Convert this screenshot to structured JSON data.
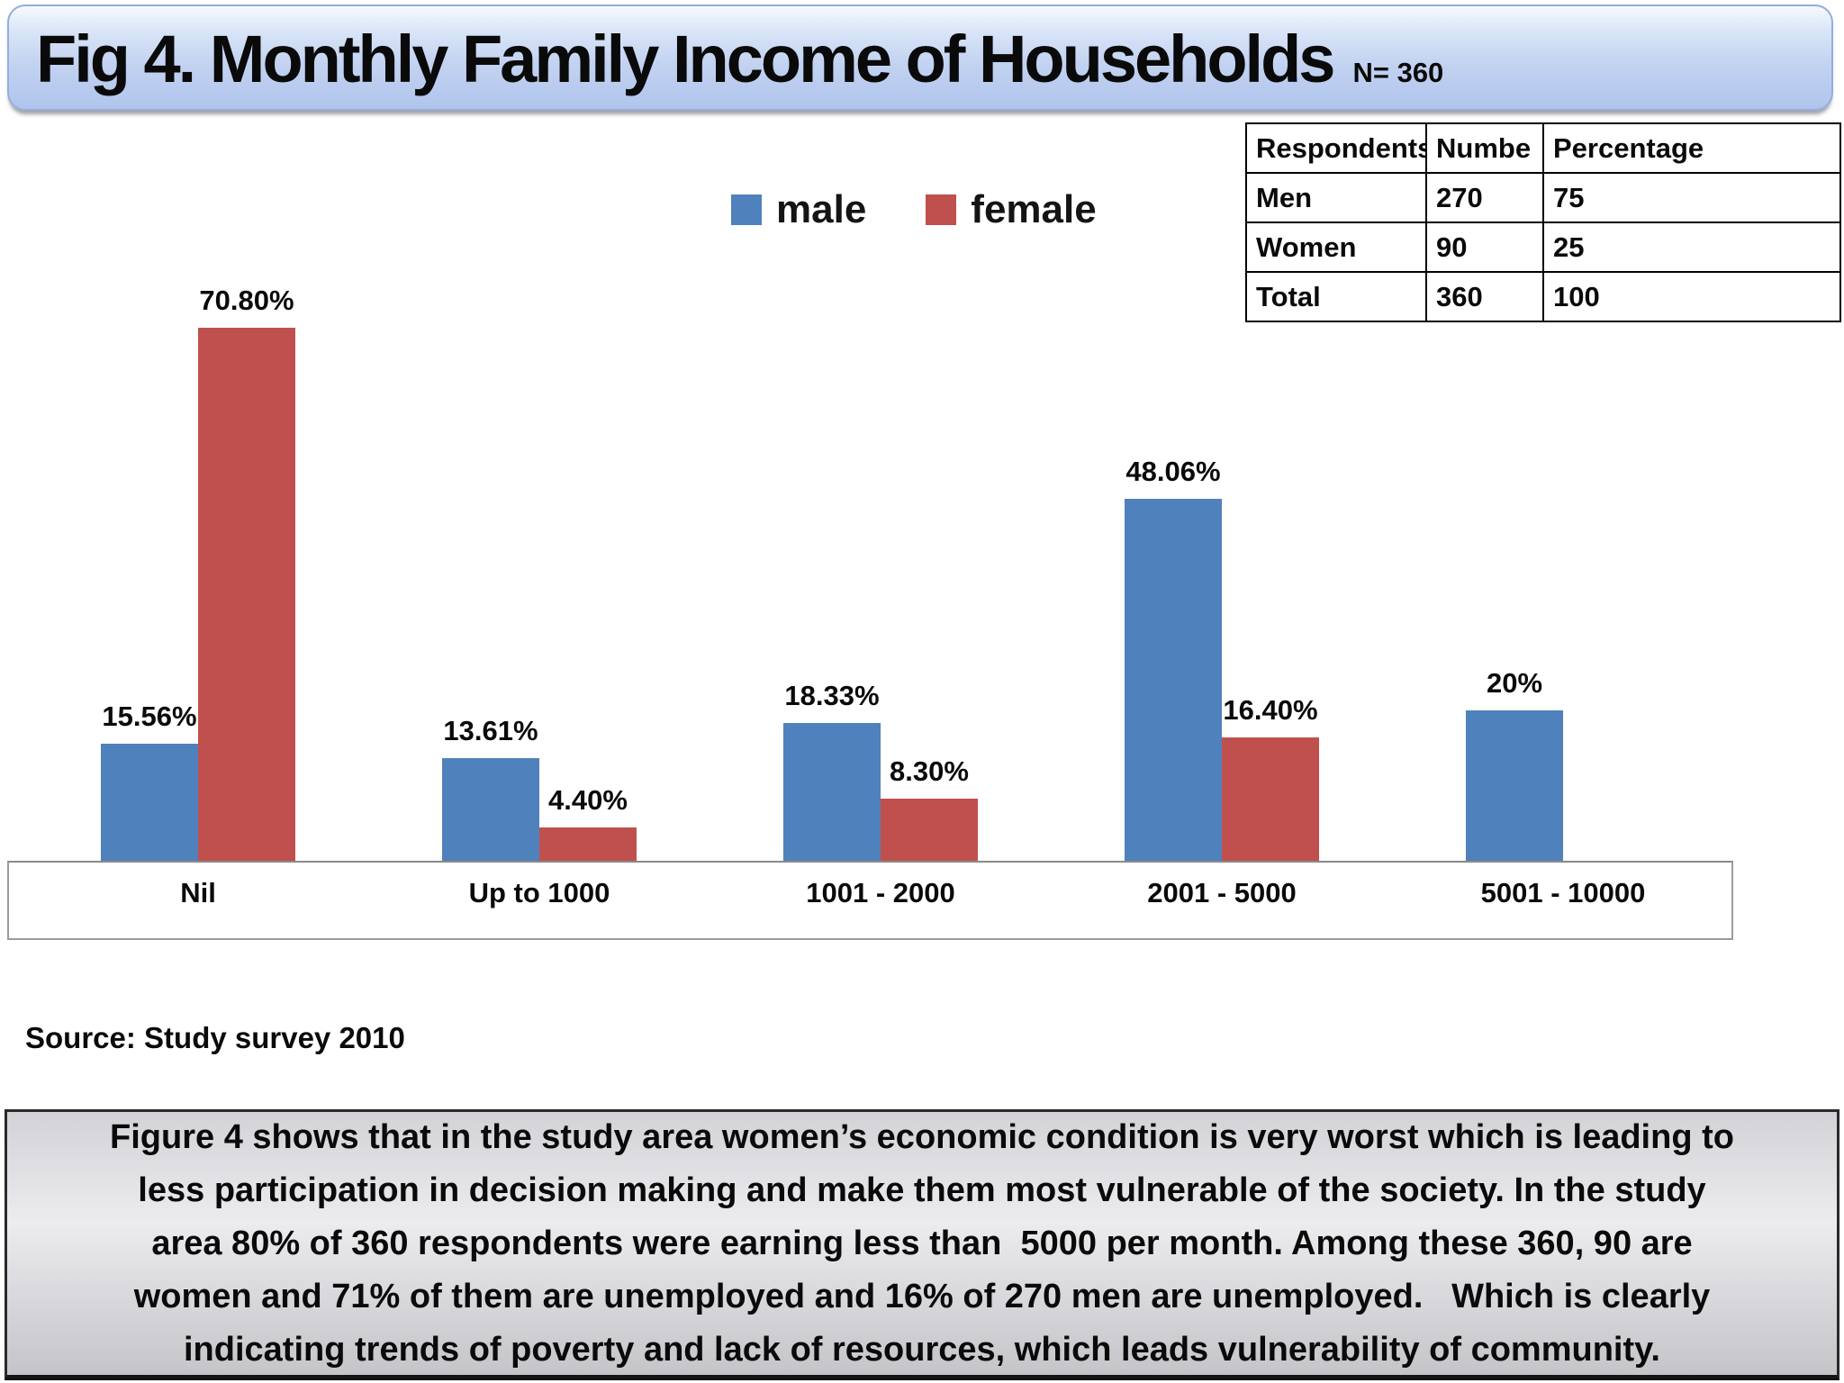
{
  "title": {
    "text": "Fig 4. Monthly Family Income of Households",
    "n_label": "N= 360"
  },
  "legend": [
    {
      "label": "male",
      "color": "#4f81bd"
    },
    {
      "label": "female",
      "color": "#c0504d"
    }
  ],
  "table": {
    "headers": [
      "Respondents",
      "Numbe",
      "Percentage"
    ],
    "rows": [
      [
        "Men",
        "270",
        "75"
      ],
      [
        "Women",
        "90",
        "25"
      ],
      [
        "Total",
        "360",
        "100"
      ]
    ]
  },
  "source": "Source: Study survey 2010",
  "caption_lines": [
    "Figure 4 shows that in the study area women’s economic condition is very worst which is leading to",
    "less participation in decision making and make them most vulnerable of the society. In the study",
    "area 80% of 360 respondents were earning less than  5000 per month. Among these 360, 90 are",
    "women and 71% of them are unemployed and 16% of 270 men are unemployed.   Which is clearly",
    "indicating trends of poverty and lack of resources, which leads vulnerability of community."
  ],
  "chart_data": {
    "type": "bar",
    "categories": [
      "Nil",
      "Up to 1000",
      "1001 - 2000",
      "2001 - 5000",
      "5001 - 10000"
    ],
    "series": [
      {
        "name": "male",
        "color": "#4f81bd",
        "values": [
          15.56,
          13.61,
          18.33,
          48.06,
          20.0
        ]
      },
      {
        "name": "female",
        "color": "#c0504d",
        "values": [
          70.8,
          4.4,
          8.3,
          16.4,
          0.0
        ]
      }
    ],
    "data_labels": [
      [
        "15.56%",
        "13.61%",
        "18.33%",
        "48.06%",
        "20%"
      ],
      [
        "70.80%",
        "4.40%",
        "8.30%",
        "16.40%",
        ""
      ]
    ],
    "title": "Fig 4. Monthly Family Income of Households",
    "xlabel": "",
    "ylabel": "",
    "ylim": [
      0,
      80
    ],
    "grid": false,
    "legend_position": "top-center"
  }
}
